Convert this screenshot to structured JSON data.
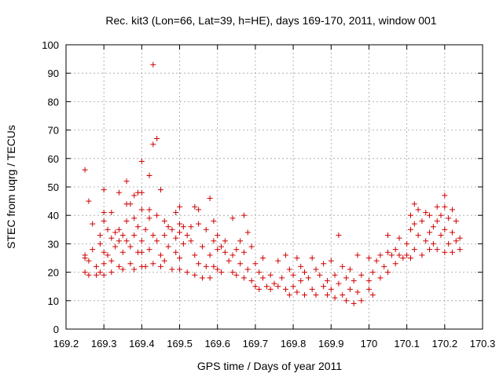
{
  "chart_data": {
    "type": "scatter",
    "title": "Rec. kit3 (Lon=66, Lat=39, h=HE), days 169-170, 2011, window 001",
    "xlabel": "GPS time / Days of year 2011",
    "ylabel": "STEC from uqrg / TECUs",
    "xlim": [
      169.2,
      170.3
    ],
    "ylim": [
      0,
      100
    ],
    "xticks": [
      169.2,
      169.3,
      169.4,
      169.5,
      169.6,
      169.7,
      169.8,
      169.9,
      170,
      170.1,
      170.2,
      170.3
    ],
    "xtick_labels": [
      "169.2",
      "169.3",
      "169.4",
      "169.5",
      "169.6",
      "169.7",
      "169.8",
      "169.9",
      "170",
      "170.1",
      "170.2",
      "170.3"
    ],
    "yticks": [
      0,
      10,
      20,
      30,
      40,
      50,
      60,
      70,
      80,
      90,
      100
    ],
    "ytick_labels": [
      "0",
      "10",
      "20",
      "30",
      "40",
      "50",
      "60",
      "70",
      "80",
      "90",
      "100"
    ],
    "grid": true,
    "marker": "plus",
    "color": "#d00000",
    "series": [
      {
        "points": [
          [
            169.25,
            56
          ],
          [
            169.25,
            26
          ],
          [
            169.25,
            25
          ],
          [
            169.25,
            20
          ],
          [
            169.26,
            45
          ],
          [
            169.26,
            24
          ],
          [
            169.26,
            19
          ],
          [
            169.27,
            37
          ],
          [
            169.27,
            28
          ],
          [
            169.28,
            22
          ],
          [
            169.28,
            19
          ],
          [
            169.29,
            33
          ],
          [
            169.29,
            30
          ],
          [
            169.29,
            20
          ],
          [
            169.3,
            49
          ],
          [
            169.3,
            41
          ],
          [
            169.3,
            38
          ],
          [
            169.3,
            27
          ],
          [
            169.3,
            23
          ],
          [
            169.3,
            19
          ],
          [
            169.31,
            35
          ],
          [
            169.31,
            26
          ],
          [
            169.32,
            41
          ],
          [
            169.32,
            32
          ],
          [
            169.32,
            24
          ],
          [
            169.32,
            20
          ],
          [
            169.33,
            34
          ],
          [
            169.33,
            29
          ],
          [
            169.34,
            48
          ],
          [
            169.34,
            35
          ],
          [
            169.34,
            31
          ],
          [
            169.34,
            22
          ],
          [
            169.35,
            33
          ],
          [
            169.35,
            27
          ],
          [
            169.35,
            21
          ],
          [
            169.36,
            52
          ],
          [
            169.36,
            44
          ],
          [
            169.36,
            38
          ],
          [
            169.36,
            31
          ],
          [
            169.37,
            44
          ],
          [
            169.37,
            29
          ],
          [
            169.37,
            23
          ],
          [
            169.38,
            47
          ],
          [
            169.38,
            39
          ],
          [
            169.38,
            33
          ],
          [
            169.38,
            21
          ],
          [
            169.39,
            48
          ],
          [
            169.39,
            36
          ],
          [
            169.39,
            27
          ],
          [
            169.4,
            59
          ],
          [
            169.4,
            48
          ],
          [
            169.4,
            42
          ],
          [
            169.4,
            31
          ],
          [
            169.4,
            27
          ],
          [
            169.4,
            22
          ],
          [
            169.41,
            35
          ],
          [
            169.41,
            22
          ],
          [
            169.42,
            54
          ],
          [
            169.42,
            42
          ],
          [
            169.42,
            39
          ],
          [
            169.42,
            28
          ],
          [
            169.43,
            93
          ],
          [
            169.43,
            65
          ],
          [
            169.43,
            33
          ],
          [
            169.43,
            23
          ],
          [
            169.44,
            67
          ],
          [
            169.44,
            40
          ],
          [
            169.44,
            31
          ],
          [
            169.45,
            49
          ],
          [
            169.45,
            26
          ],
          [
            169.45,
            22
          ],
          [
            169.46,
            38
          ],
          [
            169.46,
            33
          ],
          [
            169.46,
            24
          ],
          [
            169.47,
            36
          ],
          [
            169.47,
            29
          ],
          [
            169.48,
            35
          ],
          [
            169.48,
            21
          ],
          [
            169.49,
            41
          ],
          [
            169.49,
            32
          ],
          [
            169.49,
            27
          ],
          [
            169.5,
            43
          ],
          [
            169.5,
            37
          ],
          [
            169.5,
            34
          ],
          [
            169.5,
            25
          ],
          [
            169.5,
            21
          ],
          [
            169.51,
            36
          ],
          [
            169.51,
            30
          ],
          [
            169.52,
            33
          ],
          [
            169.52,
            20
          ],
          [
            169.53,
            36
          ],
          [
            169.53,
            31
          ],
          [
            169.54,
            43
          ],
          [
            169.54,
            26
          ],
          [
            169.54,
            19
          ],
          [
            169.55,
            42
          ],
          [
            169.55,
            37
          ],
          [
            169.55,
            23
          ],
          [
            169.56,
            29
          ],
          [
            169.56,
            18
          ],
          [
            169.57,
            35
          ],
          [
            169.57,
            22
          ],
          [
            169.58,
            46
          ],
          [
            169.58,
            26
          ],
          [
            169.58,
            18
          ],
          [
            169.59,
            38
          ],
          [
            169.59,
            31
          ],
          [
            169.59,
            22
          ],
          [
            169.6,
            33
          ],
          [
            169.6,
            28
          ],
          [
            169.6,
            21
          ],
          [
            169.61,
            29
          ],
          [
            169.61,
            20
          ],
          [
            169.62,
            31
          ],
          [
            169.62,
            27
          ],
          [
            169.63,
            24
          ],
          [
            169.64,
            39
          ],
          [
            169.64,
            26
          ],
          [
            169.64,
            20
          ],
          [
            169.65,
            28
          ],
          [
            169.65,
            19
          ],
          [
            169.66,
            31
          ],
          [
            169.66,
            23
          ],
          [
            169.67,
            40
          ],
          [
            169.67,
            27
          ],
          [
            169.67,
            18
          ],
          [
            169.68,
            34
          ],
          [
            169.68,
            21
          ],
          [
            169.69,
            29
          ],
          [
            169.69,
            17
          ],
          [
            169.7,
            23
          ],
          [
            169.7,
            15
          ],
          [
            169.71,
            20
          ],
          [
            169.71,
            14
          ],
          [
            169.72,
            18
          ],
          [
            169.72,
            25
          ],
          [
            169.73,
            15
          ],
          [
            169.74,
            19
          ],
          [
            169.74,
            14
          ],
          [
            169.75,
            16
          ],
          [
            169.76,
            24
          ],
          [
            169.76,
            15
          ],
          [
            169.77,
            18
          ],
          [
            169.78,
            26
          ],
          [
            169.78,
            14
          ],
          [
            169.79,
            21
          ],
          [
            169.79,
            12
          ],
          [
            169.8,
            19
          ],
          [
            169.8,
            15
          ],
          [
            169.81,
            25
          ],
          [
            169.81,
            13
          ],
          [
            169.82,
            22
          ],
          [
            169.82,
            17
          ],
          [
            169.83,
            20
          ],
          [
            169.83,
            12
          ],
          [
            169.84,
            18
          ],
          [
            169.85,
            25
          ],
          [
            169.85,
            14
          ],
          [
            169.86,
            21
          ],
          [
            169.86,
            12
          ],
          [
            169.87,
            19
          ],
          [
            169.88,
            23
          ],
          [
            169.88,
            15
          ],
          [
            169.89,
            17
          ],
          [
            169.89,
            12
          ],
          [
            169.9,
            24
          ],
          [
            169.9,
            14
          ],
          [
            169.91,
            19
          ],
          [
            169.91,
            11
          ],
          [
            169.92,
            33
          ],
          [
            169.92,
            16
          ],
          [
            169.93,
            22
          ],
          [
            169.93,
            12
          ],
          [
            169.94,
            18
          ],
          [
            169.94,
            10
          ],
          [
            169.95,
            21
          ],
          [
            169.95,
            14
          ],
          [
            169.96,
            17
          ],
          [
            169.96,
            9
          ],
          [
            169.97,
            26
          ],
          [
            169.97,
            13
          ],
          [
            169.98,
            19
          ],
          [
            169.98,
            10
          ],
          [
            170.0,
            25
          ],
          [
            170.0,
            17
          ],
          [
            170.0,
            14
          ],
          [
            170.01,
            20
          ],
          [
            170.01,
            12
          ],
          [
            170.02,
            24
          ],
          [
            170.03,
            26
          ],
          [
            170.03,
            18
          ],
          [
            170.04,
            22
          ],
          [
            170.05,
            33
          ],
          [
            170.05,
            27
          ],
          [
            170.05,
            20
          ],
          [
            170.06,
            26
          ],
          [
            170.07,
            28
          ],
          [
            170.07,
            23
          ],
          [
            170.08,
            32
          ],
          [
            170.08,
            26
          ],
          [
            170.09,
            25
          ],
          [
            170.1,
            30
          ],
          [
            170.1,
            26
          ],
          [
            170.11,
            40
          ],
          [
            170.11,
            35
          ],
          [
            170.11,
            25
          ],
          [
            170.12,
            44
          ],
          [
            170.12,
            37
          ],
          [
            170.12,
            28
          ],
          [
            170.13,
            42
          ],
          [
            170.13,
            33
          ],
          [
            170.14,
            38
          ],
          [
            170.14,
            26
          ],
          [
            170.15,
            41
          ],
          [
            170.15,
            31
          ],
          [
            170.16,
            40
          ],
          [
            170.16,
            34
          ],
          [
            170.16,
            28
          ],
          [
            170.17,
            36
          ],
          [
            170.17,
            30
          ],
          [
            170.18,
            43
          ],
          [
            170.18,
            38
          ],
          [
            170.18,
            28
          ],
          [
            170.19,
            40
          ],
          [
            170.19,
            33
          ],
          [
            170.2,
            47
          ],
          [
            170.2,
            43
          ],
          [
            170.2,
            35
          ],
          [
            170.2,
            27
          ],
          [
            170.21,
            39
          ],
          [
            170.21,
            30
          ],
          [
            170.22,
            42
          ],
          [
            170.22,
            34
          ],
          [
            170.22,
            27
          ],
          [
            170.23,
            38
          ],
          [
            170.23,
            31
          ],
          [
            170.24,
            32
          ],
          [
            170.24,
            28
          ]
        ]
      }
    ]
  }
}
